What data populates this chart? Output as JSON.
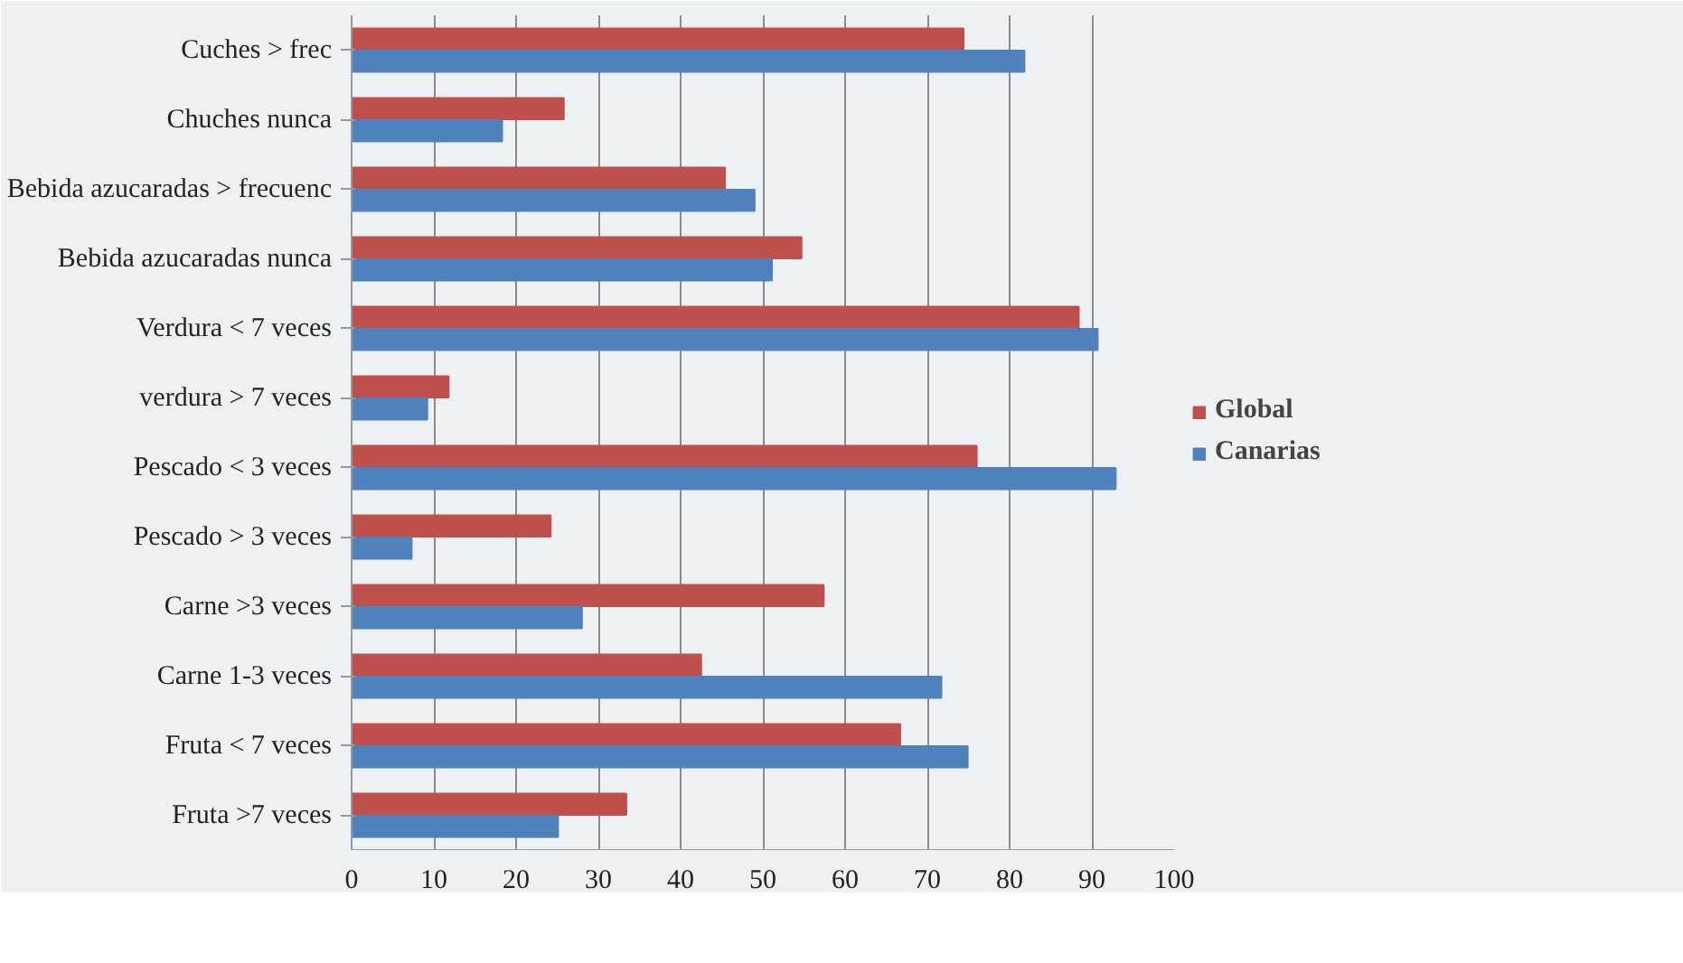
{
  "chart_data": {
    "type": "bar",
    "orientation": "horizontal",
    "categories": [
      "Cuches > frec",
      "Chuches nunca",
      "Bebida azucaradas > frecuenc",
      "Bebida azucaradas nunca",
      "Verdura < 7 veces",
      "verdura > 7 veces",
      "Pescado < 3 veces",
      "Pescado > 3 veces",
      "Carne >3 veces",
      "Carne 1-3 veces",
      "Fruta < 7 veces",
      "Fruta >7 veces"
    ],
    "series": [
      {
        "name": "Global",
        "color": "#c0504d",
        "values": [
          74.4,
          25.8,
          45.4,
          54.7,
          88.4,
          11.8,
          76.0,
          24.2,
          57.4,
          42.5,
          66.7,
          33.4
        ]
      },
      {
        "name": "Canarias",
        "color": "#4f81bd",
        "values": [
          81.8,
          18.3,
          49.0,
          51.1,
          90.7,
          9.2,
          92.9,
          7.3,
          28.0,
          71.7,
          74.9,
          25.1
        ]
      }
    ],
    "xlim": [
      0,
      100
    ],
    "xticks": [
      0,
      10,
      20,
      30,
      40,
      50,
      60,
      70,
      80,
      90,
      100
    ],
    "grid": "x",
    "legend": "right"
  }
}
